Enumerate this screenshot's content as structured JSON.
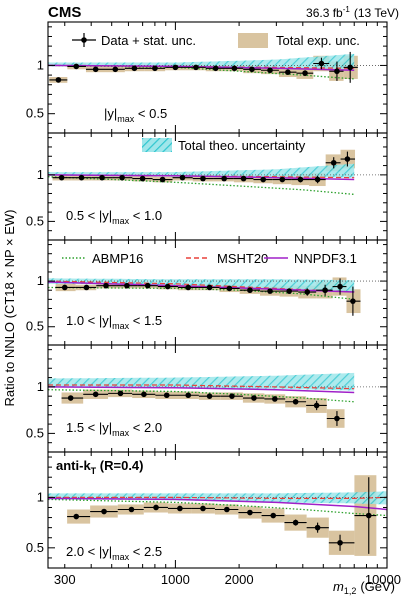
{
  "header": {
    "experiment": "CMS",
    "lumi_value": "36.3 fb",
    "lumi_exp": "-1",
    "lumi_energy": "(13 TeV)"
  },
  "axes": {
    "ylabel": "Ratio to NNLO (CT18 × NP × EW)",
    "xlabel_main": "m",
    "xlabel_sub": "1,2",
    "xlabel_unit": "(GeV)",
    "xscale": "log",
    "xlim": [
      250,
      10000
    ],
    "ylim": [
      0.3,
      1.45
    ],
    "xtick_labels": [
      {
        "value": 300,
        "label": "300"
      },
      {
        "value": 1000,
        "label": "1000"
      },
      {
        "value": 2000,
        "label": "2000"
      },
      {
        "value": 10000,
        "label": "10000"
      }
    ],
    "ytick_labels": [
      {
        "value": 1,
        "label": "1"
      },
      {
        "value": 0.5,
        "label": "0.5"
      }
    ],
    "reference_line": 1
  },
  "legend": {
    "data": "Data + stat. unc.",
    "exp_unc": "Total exp. unc.",
    "theo_unc": "Total theo. uncertainty",
    "abmp": "ABMP16",
    "msht": "MSHT20",
    "nnpdf": "NNPDF3.1"
  },
  "algo_label": "anti-k",
  "algo_sub": "T",
  "algo_radius": " (R=0.4)",
  "colors": {
    "exp_band": "#d9c4a0",
    "theo_band": "#4dd3d9",
    "abmp": "#2ca02c",
    "msht": "#e8403a",
    "nnpdf": "#a020c8",
    "data": "#000000"
  },
  "chart_data": {
    "type": "scatter",
    "panels": [
      {
        "range_label": "|y|max < 0.5",
        "range_pre": "|y|",
        "range_sub": "max",
        "range_post": " < 0.5",
        "points": [
          {
            "x": 280,
            "y": 0.85,
            "stat": 0.01,
            "exp": 0.03
          },
          {
            "x": 340,
            "y": 0.99,
            "stat": 0.01,
            "exp": 0.03
          },
          {
            "x": 420,
            "y": 0.96,
            "stat": 0.01,
            "exp": 0.03
          },
          {
            "x": 520,
            "y": 0.96,
            "stat": 0.01,
            "exp": 0.03
          },
          {
            "x": 640,
            "y": 0.97,
            "stat": 0.01,
            "exp": 0.03
          },
          {
            "x": 800,
            "y": 0.97,
            "stat": 0.01,
            "exp": 0.03
          },
          {
            "x": 1000,
            "y": 0.98,
            "stat": 0.01,
            "exp": 0.03
          },
          {
            "x": 1250,
            "y": 0.98,
            "stat": 0.01,
            "exp": 0.03
          },
          {
            "x": 1550,
            "y": 0.97,
            "stat": 0.01,
            "exp": 0.03
          },
          {
            "x": 1900,
            "y": 0.97,
            "stat": 0.01,
            "exp": 0.03
          },
          {
            "x": 2300,
            "y": 0.96,
            "stat": 0.01,
            "exp": 0.04
          },
          {
            "x": 2800,
            "y": 0.95,
            "stat": 0.01,
            "exp": 0.04
          },
          {
            "x": 3400,
            "y": 0.93,
            "stat": 0.02,
            "exp": 0.05
          },
          {
            "x": 4100,
            "y": 0.92,
            "stat": 0.03,
            "exp": 0.06
          },
          {
            "x": 4900,
            "y": 1.02,
            "stat": 0.06,
            "exp": 0.08
          },
          {
            "x": 5800,
            "y": 0.94,
            "stat": 0.1,
            "exp": 0.1
          },
          {
            "x": 6700,
            "y": 0.98,
            "stat": 0.16,
            "exp": 0.12
          }
        ],
        "theo_band": {
          "x": [
            250,
            1000,
            3000,
            7000
          ],
          "lo": [
            0.99,
            0.99,
            0.98,
            0.96
          ],
          "hi": [
            1.03,
            1.03,
            1.06,
            1.12
          ]
        },
        "abmp": {
          "x": [
            250,
            1000,
            2000,
            4000,
            7000
          ],
          "y": [
            1.0,
            0.98,
            0.94,
            0.9,
            0.86
          ]
        },
        "msht": {
          "x": [
            250,
            1000,
            3000,
            7000
          ],
          "y": [
            1.0,
            0.99,
            0.98,
            0.97
          ]
        },
        "nnpdf": {
          "x": [
            250,
            1000,
            3000,
            7000
          ],
          "y": [
            1.0,
            0.99,
            0.97,
            0.95
          ]
        }
      },
      {
        "range_label": "0.5 < |y|max < 1.0",
        "range_pre": "0.5 < |y|",
        "range_sub": "max",
        "range_post": " < 1.0",
        "points": [
          {
            "x": 290,
            "y": 0.97,
            "stat": 0.01,
            "exp": 0.03
          },
          {
            "x": 360,
            "y": 0.97,
            "stat": 0.01,
            "exp": 0.03
          },
          {
            "x": 450,
            "y": 0.97,
            "stat": 0.01,
            "exp": 0.03
          },
          {
            "x": 560,
            "y": 0.97,
            "stat": 0.01,
            "exp": 0.03
          },
          {
            "x": 700,
            "y": 0.96,
            "stat": 0.01,
            "exp": 0.03
          },
          {
            "x": 870,
            "y": 0.95,
            "stat": 0.01,
            "exp": 0.03
          },
          {
            "x": 1080,
            "y": 0.97,
            "stat": 0.01,
            "exp": 0.03
          },
          {
            "x": 1350,
            "y": 0.96,
            "stat": 0.01,
            "exp": 0.03
          },
          {
            "x": 1700,
            "y": 0.96,
            "stat": 0.01,
            "exp": 0.03
          },
          {
            "x": 2100,
            "y": 0.96,
            "stat": 0.01,
            "exp": 0.04
          },
          {
            "x": 2600,
            "y": 0.95,
            "stat": 0.01,
            "exp": 0.04
          },
          {
            "x": 3200,
            "y": 0.95,
            "stat": 0.02,
            "exp": 0.05
          },
          {
            "x": 3900,
            "y": 0.95,
            "stat": 0.03,
            "exp": 0.06
          },
          {
            "x": 4700,
            "y": 0.95,
            "stat": 0.04,
            "exp": 0.07
          },
          {
            "x": 5600,
            "y": 1.13,
            "stat": 0.06,
            "exp": 0.09
          },
          {
            "x": 6500,
            "y": 1.17,
            "stat": 0.08,
            "exp": 0.1
          }
        ],
        "theo_band": {
          "x": [
            250,
            1000,
            3000,
            7000
          ],
          "lo": [
            0.99,
            0.98,
            0.98,
            0.97
          ],
          "hi": [
            1.03,
            1.03,
            1.06,
            1.12
          ]
        },
        "abmp": {
          "x": [
            250,
            1000,
            2000,
            4000,
            7000
          ],
          "y": [
            0.98,
            0.92,
            0.88,
            0.84,
            0.79
          ]
        },
        "msht": {
          "x": [
            250,
            1000,
            3000,
            7000
          ],
          "y": [
            1.0,
            0.99,
            0.98,
            0.97
          ]
        },
        "nnpdf": {
          "x": [
            250,
            1000,
            3000,
            7000
          ],
          "y": [
            1.0,
            0.99,
            0.97,
            0.95
          ]
        }
      },
      {
        "range_label": "1.0 < |y|max < 1.5",
        "range_pre": "1.0 < |y|",
        "range_sub": "max",
        "range_post": " < 1.5",
        "points": [
          {
            "x": 300,
            "y": 0.93,
            "stat": 0.01,
            "exp": 0.04
          },
          {
            "x": 380,
            "y": 0.93,
            "stat": 0.01,
            "exp": 0.03
          },
          {
            "x": 470,
            "y": 0.95,
            "stat": 0.01,
            "exp": 0.03
          },
          {
            "x": 590,
            "y": 0.95,
            "stat": 0.01,
            "exp": 0.03
          },
          {
            "x": 740,
            "y": 0.95,
            "stat": 0.01,
            "exp": 0.03
          },
          {
            "x": 920,
            "y": 0.94,
            "stat": 0.01,
            "exp": 0.03
          },
          {
            "x": 1150,
            "y": 0.93,
            "stat": 0.01,
            "exp": 0.03
          },
          {
            "x": 1450,
            "y": 0.93,
            "stat": 0.01,
            "exp": 0.03
          },
          {
            "x": 1800,
            "y": 0.92,
            "stat": 0.01,
            "exp": 0.04
          },
          {
            "x": 2250,
            "y": 0.9,
            "stat": 0.02,
            "exp": 0.04
          },
          {
            "x": 2800,
            "y": 0.89,
            "stat": 0.02,
            "exp": 0.05
          },
          {
            "x": 3450,
            "y": 0.89,
            "stat": 0.03,
            "exp": 0.06
          },
          {
            "x": 4200,
            "y": 0.88,
            "stat": 0.04,
            "exp": 0.07
          },
          {
            "x": 5100,
            "y": 0.9,
            "stat": 0.06,
            "exp": 0.09
          },
          {
            "x": 6000,
            "y": 0.94,
            "stat": 0.09,
            "exp": 0.1
          },
          {
            "x": 6900,
            "y": 0.78,
            "stat": 0.16,
            "exp": 0.13
          }
        ],
        "theo_band": {
          "x": [
            250,
            1000,
            3000,
            7000
          ],
          "lo": [
            0.97,
            0.96,
            0.92,
            0.88
          ],
          "hi": [
            1.03,
            1.02,
            1.02,
            1.01
          ]
        },
        "abmp": {
          "x": [
            250,
            1000,
            2000,
            4000,
            7000
          ],
          "y": [
            0.93,
            0.92,
            0.9,
            0.86,
            0.8
          ]
        },
        "msht": {
          "x": [
            250,
            1000,
            3000,
            7000
          ],
          "y": [
            1.0,
            0.97,
            0.92,
            0.88
          ]
        },
        "nnpdf": {
          "x": [
            250,
            1000,
            3000,
            7000
          ],
          "y": [
            0.99,
            0.95,
            0.91,
            0.88
          ]
        }
      },
      {
        "range_label": "1.5 < |y|max < 2.0",
        "range_pre": "1.5 < |y|",
        "range_sub": "max",
        "range_post": " < 2.0",
        "points": [
          {
            "x": 320,
            "y": 0.88,
            "stat": 0.01,
            "exp": 0.06
          },
          {
            "x": 420,
            "y": 0.92,
            "stat": 0.01,
            "exp": 0.05
          },
          {
            "x": 550,
            "y": 0.93,
            "stat": 0.01,
            "exp": 0.04
          },
          {
            "x": 710,
            "y": 0.92,
            "stat": 0.01,
            "exp": 0.04
          },
          {
            "x": 910,
            "y": 0.91,
            "stat": 0.01,
            "exp": 0.04
          },
          {
            "x": 1150,
            "y": 0.91,
            "stat": 0.01,
            "exp": 0.04
          },
          {
            "x": 1450,
            "y": 0.9,
            "stat": 0.01,
            "exp": 0.04
          },
          {
            "x": 1850,
            "y": 0.9,
            "stat": 0.01,
            "exp": 0.04
          },
          {
            "x": 2350,
            "y": 0.88,
            "stat": 0.02,
            "exp": 0.05
          },
          {
            "x": 2950,
            "y": 0.87,
            "stat": 0.02,
            "exp": 0.05
          },
          {
            "x": 3700,
            "y": 0.84,
            "stat": 0.03,
            "exp": 0.06
          },
          {
            "x": 4650,
            "y": 0.8,
            "stat": 0.05,
            "exp": 0.08
          },
          {
            "x": 5800,
            "y": 0.66,
            "stat": 0.08,
            "exp": 0.1
          }
        ],
        "theo_band": {
          "x": [
            250,
            1000,
            3000,
            7000
          ],
          "lo": [
            1.0,
            0.99,
            0.98,
            0.96
          ],
          "hi": [
            1.09,
            1.1,
            1.12,
            1.15
          ]
        },
        "abmp": {
          "x": [
            250,
            1000,
            2000,
            4000,
            7000
          ],
          "y": [
            0.97,
            0.95,
            0.92,
            0.88,
            0.84
          ]
        },
        "msht": {
          "x": [
            250,
            1000,
            3000,
            7000
          ],
          "y": [
            1.02,
            1.02,
            1.0,
            0.98
          ]
        },
        "nnpdf": {
          "x": [
            250,
            1000,
            3000,
            7000
          ],
          "y": [
            1.0,
            0.99,
            0.97,
            0.94
          ]
        }
      },
      {
        "range_label": "2.0 < |y|max < 2.5",
        "range_pre": "2.0 < |y|",
        "range_sub": "max",
        "range_post": " < 2.5",
        "points": [
          {
            "x": 340,
            "y": 0.81,
            "stat": 0.01,
            "exp": 0.07
          },
          {
            "x": 460,
            "y": 0.86,
            "stat": 0.01,
            "exp": 0.06
          },
          {
            "x": 620,
            "y": 0.88,
            "stat": 0.01,
            "exp": 0.05
          },
          {
            "x": 810,
            "y": 0.9,
            "stat": 0.01,
            "exp": 0.05
          },
          {
            "x": 1050,
            "y": 0.89,
            "stat": 0.01,
            "exp": 0.05
          },
          {
            "x": 1350,
            "y": 0.89,
            "stat": 0.01,
            "exp": 0.05
          },
          {
            "x": 1750,
            "y": 0.88,
            "stat": 0.01,
            "exp": 0.05
          },
          {
            "x": 2250,
            "y": 0.85,
            "stat": 0.02,
            "exp": 0.06
          },
          {
            "x": 2900,
            "y": 0.82,
            "stat": 0.02,
            "exp": 0.07
          },
          {
            "x": 3700,
            "y": 0.75,
            "stat": 0.03,
            "exp": 0.08
          },
          {
            "x": 4700,
            "y": 0.7,
            "stat": 0.05,
            "exp": 0.1
          },
          {
            "x": 6000,
            "y": 0.55,
            "stat": 0.08,
            "exp": 0.12
          },
          {
            "x": 8200,
            "y": 0.82,
            "stat": 0.38,
            "exp": 0.4
          }
        ],
        "theo_band": {
          "x": [
            250,
            1000,
            3000,
            7000,
            10000
          ],
          "lo": [
            0.98,
            0.97,
            0.95,
            0.94,
            0.93
          ],
          "hi": [
            1.04,
            1.04,
            1.04,
            1.05,
            1.06
          ]
        },
        "abmp": {
          "x": [
            250,
            1000,
            2000,
            4000,
            7000,
            10000
          ],
          "y": [
            0.98,
            0.95,
            0.92,
            0.88,
            0.84,
            0.82
          ]
        },
        "msht": {
          "x": [
            250,
            1000,
            3000,
            7000,
            10000
          ],
          "y": [
            1.0,
            1.0,
            0.99,
            0.99,
            1.0
          ]
        },
        "nnpdf": {
          "x": [
            250,
            1000,
            3000,
            7000,
            10000
          ],
          "y": [
            0.99,
            0.98,
            0.95,
            0.91,
            0.88
          ]
        }
      }
    ]
  }
}
